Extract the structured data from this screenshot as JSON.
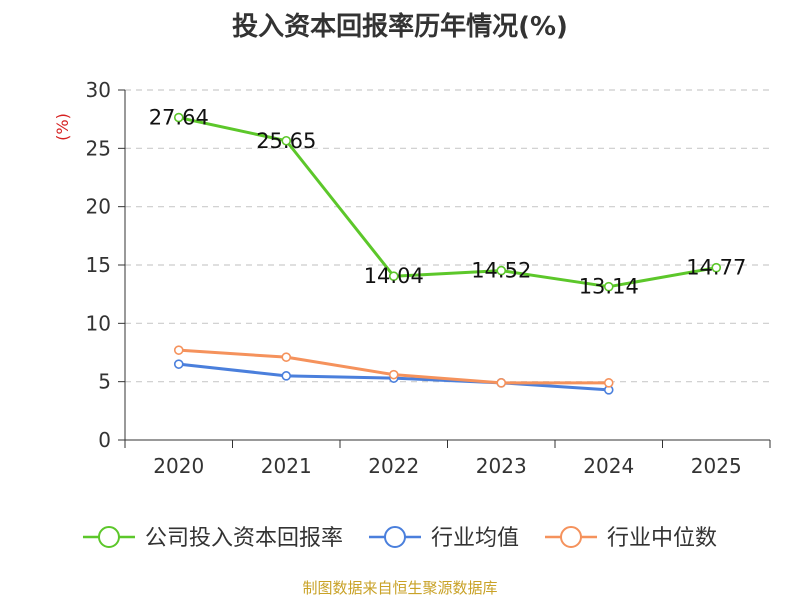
{
  "chart_data": {
    "type": "line",
    "title": "投入资本回报率历年情况(%)",
    "ylabel": "(%)",
    "xlabel": "",
    "categories": [
      "2020",
      "2021",
      "2022",
      "2023",
      "2024",
      "2025"
    ],
    "ylim": [
      0,
      30
    ],
    "yticks": [
      0,
      5,
      10,
      15,
      20,
      25,
      30
    ],
    "grid": true,
    "legend_position": "bottom",
    "series": [
      {
        "name": "公司投入资本回报率",
        "color": "#5cc72a",
        "values": [
          27.64,
          25.65,
          14.04,
          14.52,
          13.14,
          14.77
        ],
        "labels": [
          "27.64",
          "25.65",
          "14.04",
          "14.52",
          "13.14",
          "14.77"
        ]
      },
      {
        "name": "行业均值",
        "color": "#4a7fdc",
        "values": [
          6.5,
          5.5,
          5.3,
          4.9,
          4.3,
          null
        ]
      },
      {
        "name": "行业中位数",
        "color": "#f5925c",
        "values": [
          7.7,
          7.1,
          5.6,
          4.9,
          4.9,
          null
        ]
      }
    ]
  },
  "footer": {
    "source": "制图数据来自恒生聚源数据库"
  }
}
